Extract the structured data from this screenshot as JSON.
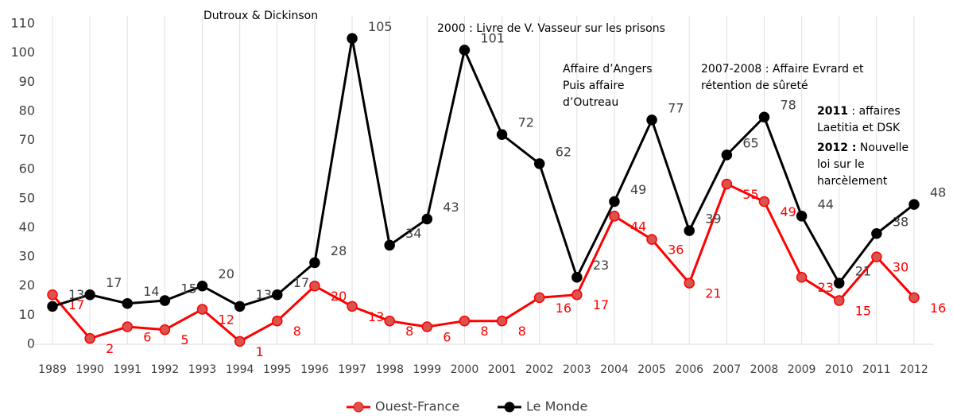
{
  "chart_data": {
    "type": "line",
    "categories": [
      "1989",
      "1990",
      "1991",
      "1992",
      "1993",
      "1994",
      "1995",
      "1996",
      "1997",
      "1998",
      "1999",
      "2000",
      "2001",
      "2002",
      "2003",
      "2004",
      "2005",
      "2006",
      "2007",
      "2008",
      "2009",
      "2010",
      "2011",
      "2012"
    ],
    "series": [
      {
        "name": "Ouest-France",
        "color": "#ff0000",
        "marker": "#d9534f",
        "values": [
          17,
          2,
          6,
          5,
          12,
          1,
          8,
          20,
          13,
          8,
          6,
          8,
          8,
          16,
          17,
          44,
          36,
          21,
          55,
          49,
          23,
          15,
          30,
          16
        ]
      },
      {
        "name": "Le Monde",
        "color": "#000000",
        "marker": "#000000",
        "values": [
          13,
          17,
          14,
          15,
          20,
          13,
          17,
          28,
          105,
          34,
          43,
          101,
          72,
          62,
          23,
          49,
          77,
          39,
          65,
          78,
          44,
          21,
          38,
          48
        ]
      }
    ],
    "ylim": [
      0,
      110
    ],
    "yticks": [
      0,
      10,
      20,
      30,
      40,
      50,
      60,
      70,
      80,
      90,
      100,
      110
    ],
    "grid": true,
    "legend": "bottom",
    "annotations": [
      {
        "lines": [
          "Dutroux & Dickinson"
        ]
      },
      {
        "lines": [
          "2000 : Livre de V. Vasseur sur les prisons"
        ]
      },
      {
        "lines": [
          "Affaire d’Angers",
          "Puis                affaire",
          "d’Outreau"
        ]
      },
      {
        "lines": [
          "2007-2008 : Affaire Evrard et",
          "rétention de sûreté"
        ]
      },
      {
        "bold": "2011",
        "lines": [
          " :       affaires",
          "Laetitia et DSK"
        ]
      },
      {
        "bold": "2012 :",
        "lines": [
          "    Nouvelle",
          "loi        sur        le",
          "harcèlement"
        ]
      }
    ]
  }
}
